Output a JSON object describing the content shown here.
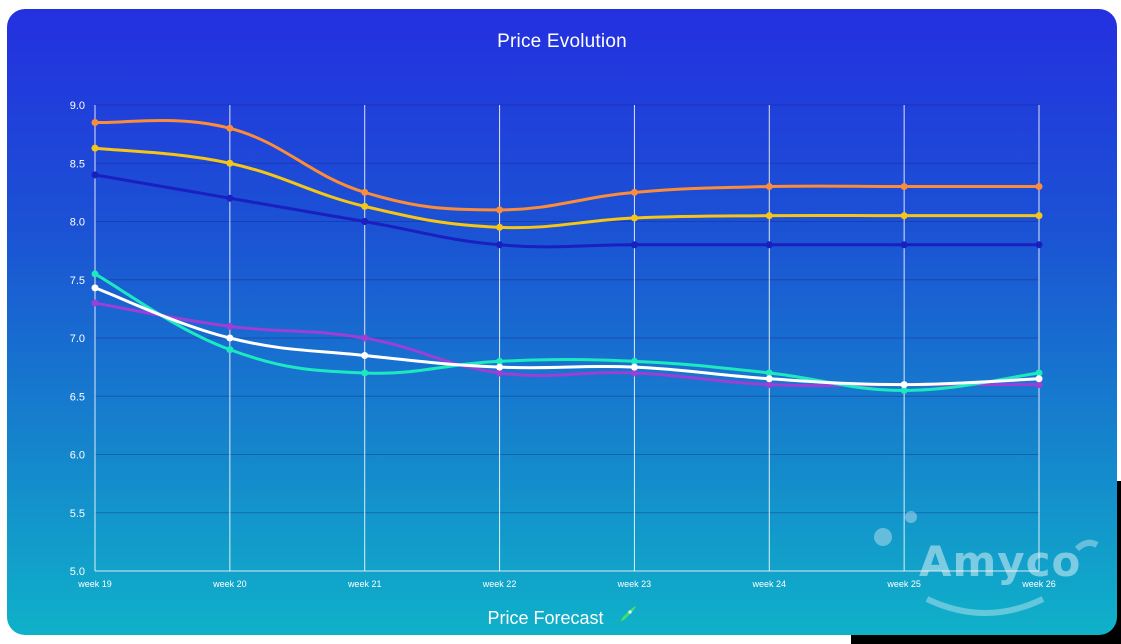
{
  "header": {
    "title": "Price Evolution"
  },
  "footer": {
    "label": "Price Forecast",
    "icon": "rocket-icon"
  },
  "watermark": {
    "text": "Amyco"
  },
  "colors": {
    "gradient_top": "#2430e0",
    "gradient_bottom": "#0fb1c9",
    "grid": "#ffffff"
  },
  "chart_data": {
    "type": "line",
    "title": "Price Evolution",
    "xlabel": "",
    "ylabel": "",
    "categories": [
      "week 19",
      "week 20",
      "week 21",
      "week 22",
      "week 23",
      "week 24",
      "week 25",
      "week 26"
    ],
    "ylim": [
      5.0,
      9.0
    ],
    "yticks": [
      "5.0",
      "5.5",
      "6.0",
      "6.5",
      "7.0",
      "7.5",
      "8.0",
      "8.5",
      "9.0"
    ],
    "grid": true,
    "legend": "none",
    "series": [
      {
        "color": "#fb8c3a",
        "values": [
          8.85,
          8.8,
          8.25,
          8.1,
          8.25,
          8.3,
          8.3,
          8.3
        ]
      },
      {
        "color": "#f5c518",
        "values": [
          8.63,
          8.5,
          8.13,
          7.95,
          8.03,
          8.05,
          8.05,
          8.05
        ]
      },
      {
        "color": "#1a1fc0",
        "values": [
          8.4,
          8.2,
          8.0,
          7.8,
          7.8,
          7.8,
          7.8,
          7.8
        ]
      },
      {
        "color": "#9b3fd6",
        "values": [
          7.3,
          7.1,
          7.0,
          6.7,
          6.7,
          6.6,
          6.6,
          6.6
        ]
      },
      {
        "color": "#1de9c0",
        "values": [
          7.55,
          6.9,
          6.7,
          6.8,
          6.8,
          6.7,
          6.55,
          6.7
        ]
      },
      {
        "color": "#ffffff",
        "values": [
          7.43,
          7.0,
          6.85,
          6.75,
          6.75,
          6.65,
          6.6,
          6.65
        ]
      }
    ]
  }
}
